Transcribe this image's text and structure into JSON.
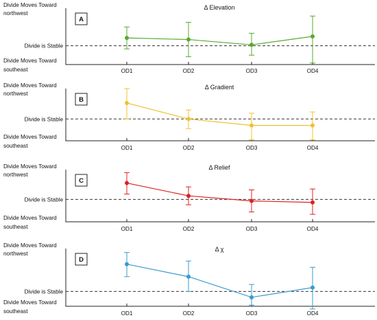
{
  "y_labels": {
    "top_line1": "Divide Moves Toward",
    "top_line2": "northwest",
    "middle": "Divide is Stable",
    "bottom_line1": "Divide Moves Toward",
    "bottom_line2": "southeast"
  },
  "chart_data": [
    {
      "panel": "A",
      "type": "line",
      "title": "Δ Elevation",
      "categories": [
        "OD1",
        "OD2",
        "OD3",
        "OD4"
      ],
      "color": "#5aa832",
      "series": [
        {
          "values": [
            0.25,
            0.2,
            0.03,
            0.3
          ],
          "error_low": [
            -0.1,
            -0.35,
            -0.3,
            -0.55
          ],
          "error_high": [
            0.6,
            0.75,
            0.4,
            0.95
          ]
        }
      ],
      "ylim": [
        -0.6,
        1.2
      ],
      "reference_line": 0,
      "grid": false
    },
    {
      "panel": "B",
      "type": "line",
      "title": "Δ Gradient",
      "categories": [
        "OD1",
        "OD2",
        "OD3",
        "OD4"
      ],
      "color": "#f0c030",
      "series": [
        {
          "values": [
            0.5,
            0.0,
            -0.2,
            -0.2
          ],
          "error_low": [
            0.0,
            -0.3,
            -0.65,
            -0.65
          ],
          "error_high": [
            0.95,
            0.28,
            0.18,
            0.22
          ]
        }
      ],
      "ylim": [
        -0.68,
        0.95
      ],
      "reference_line": 0,
      "grid": false
    },
    {
      "panel": "C",
      "type": "line",
      "title": "Δ Relief",
      "categories": [
        "OD1",
        "OD2",
        "OD3",
        "OD4"
      ],
      "color": "#e02020",
      "series": [
        {
          "values": [
            0.55,
            0.12,
            -0.05,
            -0.1
          ],
          "error_low": [
            0.18,
            -0.18,
            -0.42,
            -0.5
          ],
          "error_high": [
            0.9,
            0.42,
            0.32,
            0.35
          ]
        }
      ],
      "ylim": [
        -0.75,
        1.0
      ],
      "reference_line": 0,
      "grid": false
    },
    {
      "panel": "D",
      "type": "line",
      "title": "Δ χ",
      "categories": [
        "OD1",
        "OD2",
        "OD3",
        "OD4"
      ],
      "color": "#3a9ad0",
      "series": [
        {
          "values": [
            0.7,
            0.38,
            -0.15,
            0.1
          ],
          "error_low": [
            0.38,
            0.0,
            -0.35,
            -0.45
          ],
          "error_high": [
            1.0,
            0.78,
            0.18,
            0.62
          ]
        }
      ],
      "ylim": [
        -0.38,
        1.1
      ],
      "reference_line": 0,
      "grid": false
    }
  ]
}
